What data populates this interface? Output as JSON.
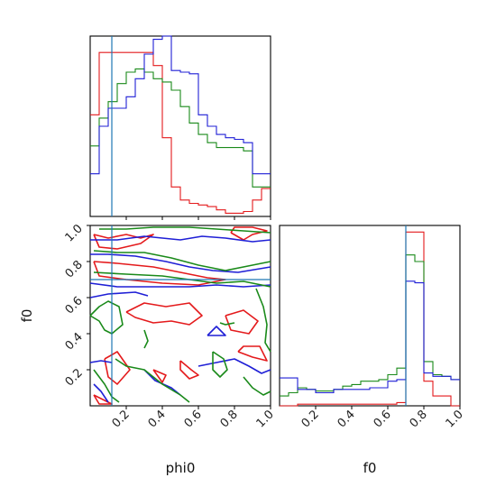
{
  "chart_data": {
    "type": "corner",
    "title": "",
    "parameters": [
      "phi0",
      "f0"
    ],
    "xlabels": {
      "phi0": "phi0",
      "f0": "f0"
    },
    "ylabels": {
      "f0": "f0"
    },
    "ticks": [
      "0.2",
      "0.4",
      "0.6",
      "0.8",
      "1.0"
    ],
    "tick_values": [
      0.2,
      0.4,
      0.6,
      0.8,
      1.0
    ],
    "xlim": [
      0.0,
      1.0
    ],
    "ylim": [
      0.0,
      1.0
    ],
    "colors": {
      "red": "#e41a1c",
      "green": "#1a8a1a",
      "blue": "#1f1fd6",
      "truth": "#1f77b4"
    },
    "truth": {
      "phi0": 0.12,
      "f0": 0.7
    },
    "marginal_phi0": {
      "bin_edges": [
        0.0,
        0.05,
        0.1,
        0.15,
        0.2,
        0.25,
        0.3,
        0.35,
        0.4,
        0.45,
        0.5,
        0.55,
        0.6,
        0.65,
        0.7,
        0.75,
        0.8,
        0.85,
        0.9,
        0.95,
        1.0
      ],
      "series": [
        {
          "color": "red",
          "values": [
            0.62,
            1.0,
            1.0,
            1.0,
            1.0,
            1.0,
            1.0,
            0.92,
            0.48,
            0.18,
            0.1,
            0.08,
            0.07,
            0.06,
            0.04,
            0.02,
            0.02,
            0.03,
            0.1,
            0.17
          ]
        },
        {
          "color": "green",
          "values": [
            0.43,
            0.6,
            0.7,
            0.81,
            0.88,
            0.9,
            0.88,
            0.84,
            0.82,
            0.77,
            0.67,
            0.57,
            0.5,
            0.45,
            0.42,
            0.42,
            0.42,
            0.4,
            0.18,
            0.18
          ]
        },
        {
          "color": "blue",
          "values": [
            0.26,
            0.55,
            0.66,
            0.66,
            0.73,
            0.84,
            0.99,
            1.08,
            1.1,
            0.89,
            0.88,
            0.87,
            0.62,
            0.55,
            0.5,
            0.48,
            0.47,
            0.45,
            0.26,
            0.26
          ]
        }
      ]
    },
    "marginal_f0": {
      "bin_edges": [
        0.0,
        0.05,
        0.1,
        0.15,
        0.2,
        0.25,
        0.3,
        0.35,
        0.4,
        0.45,
        0.5,
        0.55,
        0.6,
        0.65,
        0.7,
        0.75,
        0.8,
        0.85,
        0.9,
        0.95,
        1.0
      ],
      "series": [
        {
          "color": "red",
          "values": [
            0.0,
            0.0,
            0.01,
            0.01,
            0.01,
            0.01,
            0.01,
            0.01,
            0.01,
            0.01,
            0.01,
            0.01,
            0.01,
            0.02,
            1.06,
            1.06,
            0.15,
            0.06,
            0.06,
            0.0
          ]
        },
        {
          "color": "green",
          "values": [
            0.06,
            0.08,
            0.11,
            0.1,
            0.09,
            0.09,
            0.1,
            0.12,
            0.13,
            0.15,
            0.15,
            0.16,
            0.19,
            0.23,
            0.92,
            0.88,
            0.27,
            0.19,
            0.18,
            0.16
          ]
        },
        {
          "color": "blue",
          "values": [
            0.17,
            0.17,
            0.1,
            0.1,
            0.08,
            0.08,
            0.1,
            0.1,
            0.1,
            0.1,
            0.11,
            0.11,
            0.15,
            0.16,
            0.76,
            0.75,
            0.2,
            0.18,
            0.18,
            0.16
          ]
        }
      ]
    },
    "joint_contours": [
      {
        "color": "red",
        "paths": [
          [
            [
              0.02,
              0.95
            ],
            [
              0.1,
              0.93
            ],
            [
              0.2,
              0.95
            ],
            [
              0.28,
              0.93
            ],
            [
              0.35,
              0.95
            ],
            [
              0.28,
              0.9
            ],
            [
              0.15,
              0.87
            ],
            [
              0.05,
              0.88
            ],
            [
              0.02,
              0.95
            ]
          ],
          [
            [
              0.02,
              0.8
            ],
            [
              0.15,
              0.79
            ],
            [
              0.35,
              0.77
            ],
            [
              0.5,
              0.74
            ],
            [
              0.65,
              0.71
            ],
            [
              0.75,
              0.7
            ],
            [
              0.6,
              0.67
            ],
            [
              0.4,
              0.68
            ],
            [
              0.2,
              0.7
            ],
            [
              0.05,
              0.72
            ],
            [
              0.02,
              0.8
            ]
          ],
          [
            [
              0.2,
              0.52
            ],
            [
              0.3,
              0.57
            ],
            [
              0.42,
              0.55
            ],
            [
              0.55,
              0.57
            ],
            [
              0.62,
              0.5
            ],
            [
              0.55,
              0.45
            ],
            [
              0.45,
              0.47
            ],
            [
              0.35,
              0.46
            ],
            [
              0.25,
              0.49
            ],
            [
              0.2,
              0.52
            ]
          ],
          [
            [
              0.08,
              0.26
            ],
            [
              0.15,
              0.3
            ],
            [
              0.22,
              0.2
            ],
            [
              0.15,
              0.12
            ],
            [
              0.1,
              0.16
            ],
            [
              0.08,
              0.26
            ]
          ],
          [
            [
              0.5,
              0.25
            ],
            [
              0.56,
              0.2
            ],
            [
              0.6,
              0.17
            ],
            [
              0.55,
              0.15
            ],
            [
              0.5,
              0.2
            ],
            [
              0.5,
              0.25
            ]
          ],
          [
            [
              0.35,
              0.2
            ],
            [
              0.42,
              0.17
            ],
            [
              0.4,
              0.13
            ],
            [
              0.35,
              0.2
            ]
          ],
          [
            [
              0.75,
              0.5
            ],
            [
              0.85,
              0.53
            ],
            [
              0.93,
              0.47
            ],
            [
              0.88,
              0.4
            ],
            [
              0.78,
              0.42
            ],
            [
              0.75,
              0.5
            ]
          ],
          [
            [
              0.78,
              0.96
            ],
            [
              0.85,
              0.92
            ],
            [
              0.9,
              0.95
            ],
            [
              0.98,
              0.97
            ],
            [
              0.9,
              0.99
            ],
            [
              0.8,
              0.99
            ],
            [
              0.78,
              0.96
            ]
          ],
          [
            [
              0.82,
              0.3
            ],
            [
              0.9,
              0.27
            ],
            [
              0.98,
              0.25
            ],
            [
              0.94,
              0.33
            ],
            [
              0.85,
              0.33
            ],
            [
              0.82,
              0.3
            ]
          ],
          [
            [
              0.02,
              0.06
            ],
            [
              0.06,
              0.04
            ],
            [
              0.12,
              0.01
            ],
            [
              0.05,
              0.01
            ],
            [
              0.02,
              0.06
            ]
          ]
        ]
      },
      {
        "color": "blue",
        "paths": [
          [
            [
              0.0,
              0.92
            ],
            [
              0.15,
              0.92
            ],
            [
              0.3,
              0.94
            ],
            [
              0.5,
              0.92
            ],
            [
              0.62,
              0.94
            ],
            [
              0.75,
              0.93
            ],
            [
              0.9,
              0.91
            ],
            [
              1.0,
              0.92
            ]
          ],
          [
            [
              0.0,
              0.84
            ],
            [
              0.1,
              0.84
            ],
            [
              0.25,
              0.83
            ],
            [
              0.42,
              0.8
            ],
            [
              0.55,
              0.77
            ],
            [
              0.68,
              0.75
            ],
            [
              0.82,
              0.74
            ],
            [
              1.0,
              0.77
            ]
          ],
          [
            [
              0.0,
              0.68
            ],
            [
              0.15,
              0.66
            ],
            [
              0.35,
              0.66
            ],
            [
              0.55,
              0.66
            ],
            [
              0.7,
              0.67
            ],
            [
              0.85,
              0.66
            ],
            [
              1.0,
              0.67
            ]
          ],
          [
            [
              0.0,
              0.6
            ],
            [
              0.1,
              0.62
            ],
            [
              0.25,
              0.63
            ],
            [
              0.32,
              0.61
            ]
          ],
          [
            [
              0.0,
              0.24
            ],
            [
              0.06,
              0.25
            ],
            [
              0.12,
              0.24
            ]
          ],
          [
            [
              0.65,
              0.39
            ],
            [
              0.7,
              0.44
            ],
            [
              0.75,
              0.39
            ],
            [
              0.65,
              0.39
            ]
          ],
          [
            [
              0.02,
              0.12
            ],
            [
              0.06,
              0.08
            ],
            [
              0.1,
              0.02
            ]
          ],
          [
            [
              0.3,
              0.2
            ],
            [
              0.36,
              0.14
            ],
            [
              0.45,
              0.1
            ],
            [
              0.5,
              0.06
            ]
          ],
          [
            [
              0.6,
              0.22
            ],
            [
              0.7,
              0.24
            ],
            [
              0.8,
              0.26
            ],
            [
              0.88,
              0.22
            ],
            [
              0.95,
              0.18
            ],
            [
              1.0,
              0.2
            ]
          ]
        ]
      },
      {
        "color": "green",
        "paths": [
          [
            [
              0.05,
              0.98
            ],
            [
              0.2,
              0.98
            ],
            [
              0.35,
              0.99
            ],
            [
              0.55,
              0.99
            ],
            [
              0.7,
              0.98
            ],
            [
              0.85,
              0.97
            ],
            [
              1.0,
              0.96
            ]
          ],
          [
            [
              0.02,
              0.86
            ],
            [
              0.15,
              0.85
            ],
            [
              0.3,
              0.85
            ],
            [
              0.45,
              0.82
            ],
            [
              0.6,
              0.78
            ],
            [
              0.75,
              0.75
            ],
            [
              0.9,
              0.78
            ],
            [
              1.0,
              0.8
            ]
          ],
          [
            [
              0.02,
              0.74
            ],
            [
              0.2,
              0.73
            ],
            [
              0.4,
              0.72
            ],
            [
              0.55,
              0.7
            ],
            [
              0.7,
              0.68
            ],
            [
              0.85,
              0.69
            ],
            [
              1.0,
              0.66
            ]
          ],
          [
            [
              0.0,
              0.5
            ],
            [
              0.05,
              0.47
            ],
            [
              0.08,
              0.42
            ],
            [
              0.12,
              0.4
            ],
            [
              0.18,
              0.45
            ],
            [
              0.16,
              0.55
            ],
            [
              0.1,
              0.58
            ],
            [
              0.05,
              0.55
            ],
            [
              0.0,
              0.5
            ]
          ],
          [
            [
              0.92,
              0.65
            ],
            [
              0.96,
              0.55
            ],
            [
              0.98,
              0.45
            ],
            [
              0.97,
              0.35
            ],
            [
              1.0,
              0.3
            ]
          ],
          [
            [
              0.72,
              0.46
            ],
            [
              0.75,
              0.45
            ],
            [
              0.8,
              0.46
            ]
          ],
          [
            [
              0.14,
              0.26
            ],
            [
              0.2,
              0.22
            ],
            [
              0.3,
              0.2
            ],
            [
              0.4,
              0.12
            ],
            [
              0.5,
              0.06
            ],
            [
              0.55,
              0.02
            ]
          ],
          [
            [
              0.02,
              0.2
            ],
            [
              0.08,
              0.12
            ],
            [
              0.12,
              0.05
            ],
            [
              0.16,
              0.02
            ]
          ],
          [
            [
              0.68,
              0.3
            ],
            [
              0.74,
              0.26
            ],
            [
              0.76,
              0.2
            ],
            [
              0.72,
              0.16
            ],
            [
              0.68,
              0.2
            ],
            [
              0.68,
              0.3
            ]
          ],
          [
            [
              0.85,
              0.16
            ],
            [
              0.9,
              0.1
            ],
            [
              0.96,
              0.06
            ],
            [
              1.0,
              0.08
            ]
          ],
          [
            [
              0.3,
              0.42
            ],
            [
              0.32,
              0.36
            ],
            [
              0.3,
              0.32
            ]
          ]
        ]
      }
    ]
  }
}
